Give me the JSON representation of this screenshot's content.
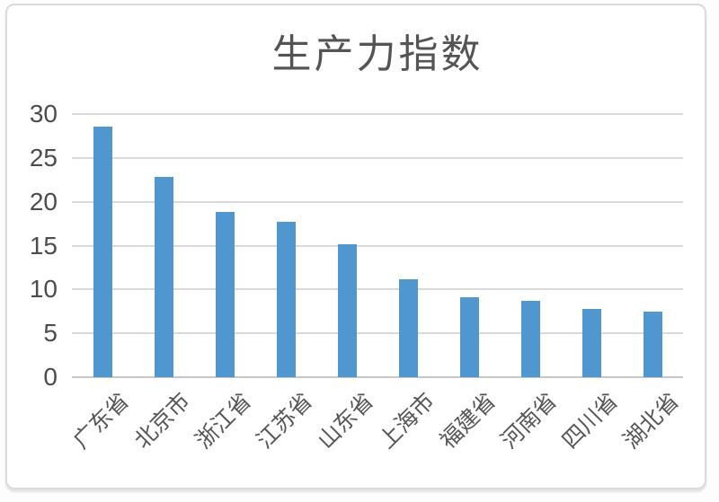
{
  "chart_data": {
    "type": "bar",
    "title": "生产力指数",
    "categories": [
      "广东省",
      "北京市",
      "浙江省",
      "江苏省",
      "山东省",
      "上海市",
      "福建省",
      "河南省",
      "四川省",
      "湖北省"
    ],
    "values": [
      28.6,
      22.8,
      18.8,
      17.7,
      15.2,
      11.2,
      9.1,
      8.7,
      7.8,
      7.5
    ],
    "xlabel": "",
    "ylabel": "",
    "ylim": [
      0,
      30
    ],
    "yticks": [
      0,
      5,
      10,
      15,
      20,
      25,
      30
    ],
    "grid": true,
    "legend": false,
    "colors": {
      "bar": "#4f97ce",
      "gridline": "#d9d9d9",
      "zero_line": "#c6c6c6",
      "tick_text": "#4c4c4c",
      "category_text": "#575757",
      "title_text": "#545454",
      "frame_border": "#dbdbdb"
    }
  }
}
